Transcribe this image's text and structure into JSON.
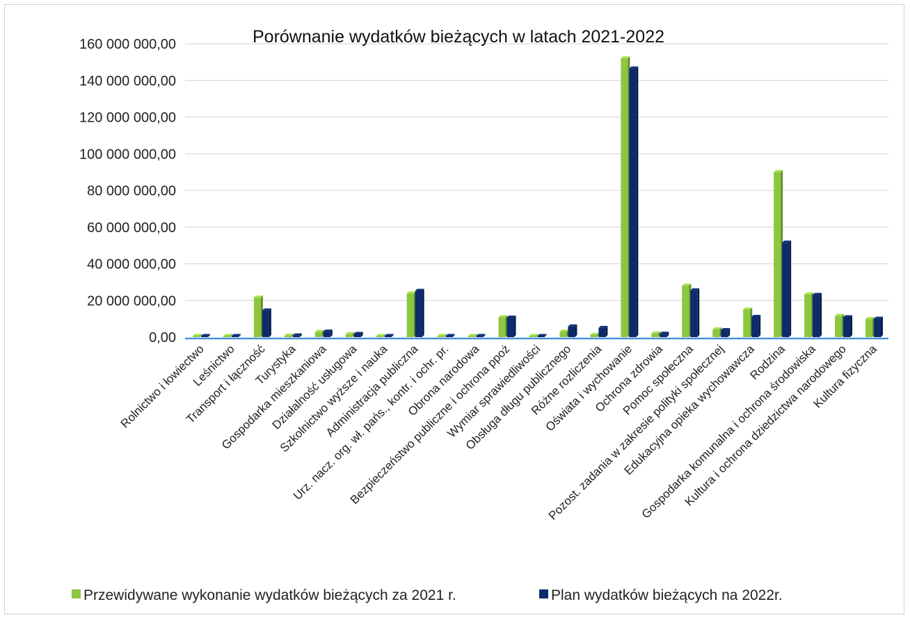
{
  "chart_data": {
    "type": "bar",
    "title": "Porównanie wydatków bieżących w latach 2021-2022",
    "xlabel": "",
    "ylabel": "",
    "ylim": [
      0,
      160000000
    ],
    "yticks": [
      0,
      20000000,
      40000000,
      60000000,
      80000000,
      100000000,
      120000000,
      140000000,
      160000000
    ],
    "ytick_labels": [
      "0,00",
      "20 000 000,00",
      "40 000 000,00",
      "60 000 000,00",
      "80 000 000,00",
      "100 000 000,00",
      "120 000 000,00",
      "140 000 000,00",
      "160 000 000,00"
    ],
    "grid": true,
    "legend_position": "bottom",
    "categories": [
      "Rolnictwo i łowiectwo",
      "Leśnictwo",
      "Transport i łączność",
      "Turystyka",
      "Gospodarka mieszkaniowa",
      "Działalność usługowa",
      "Szkolnictwo wyższe i nauka",
      "Administracja publiczna",
      "Urz. nacz. org. wł. pańs., kontr. i ochr. pr.",
      "Obrona narodowa",
      "Bezpieczeństwo publiczne i ochrona ppoż",
      "Wymiar sprawiedliwości",
      "Obsługa długu publicznego",
      "Różne rozliczenia",
      "Oświata i wychowanie",
      "Ochrona zdrowia",
      "Pomoc społeczna",
      "Pozost. zadania w zakresie polityki społecznej",
      "Edukacyjna opieka wychowawcza",
      "Rodzina",
      "Gospodarka komunalna i ochrona środowiska",
      "Kultura i ochrona dziedzictwa narodowego",
      "Kultura fizyczna"
    ],
    "series": [
      {
        "name": "Przewidywane wykonanie wydatków bieżących za 2021 r.",
        "color": "#8dc63f",
        "values": [
          100000,
          50000,
          21500000,
          800000,
          2800000,
          1600000,
          250000,
          23800000,
          100000,
          50000,
          10800000,
          200000,
          3000000,
          1200000,
          152000000,
          2000000,
          28000000,
          4200000,
          15000000,
          90000000,
          23200000,
          11500000,
          9800000
        ]
      },
      {
        "name": "Plan wydatków bieżących na 2022r.",
        "color": "#0d2a6b",
        "values": [
          100000,
          50000,
          14500000,
          900000,
          3000000,
          1700000,
          250000,
          25200000,
          100000,
          50000,
          10600000,
          200000,
          5800000,
          5000000,
          146500000,
          1800000,
          25500000,
          3800000,
          11000000,
          51500000,
          23000000,
          10800000,
          10000000
        ]
      }
    ]
  }
}
